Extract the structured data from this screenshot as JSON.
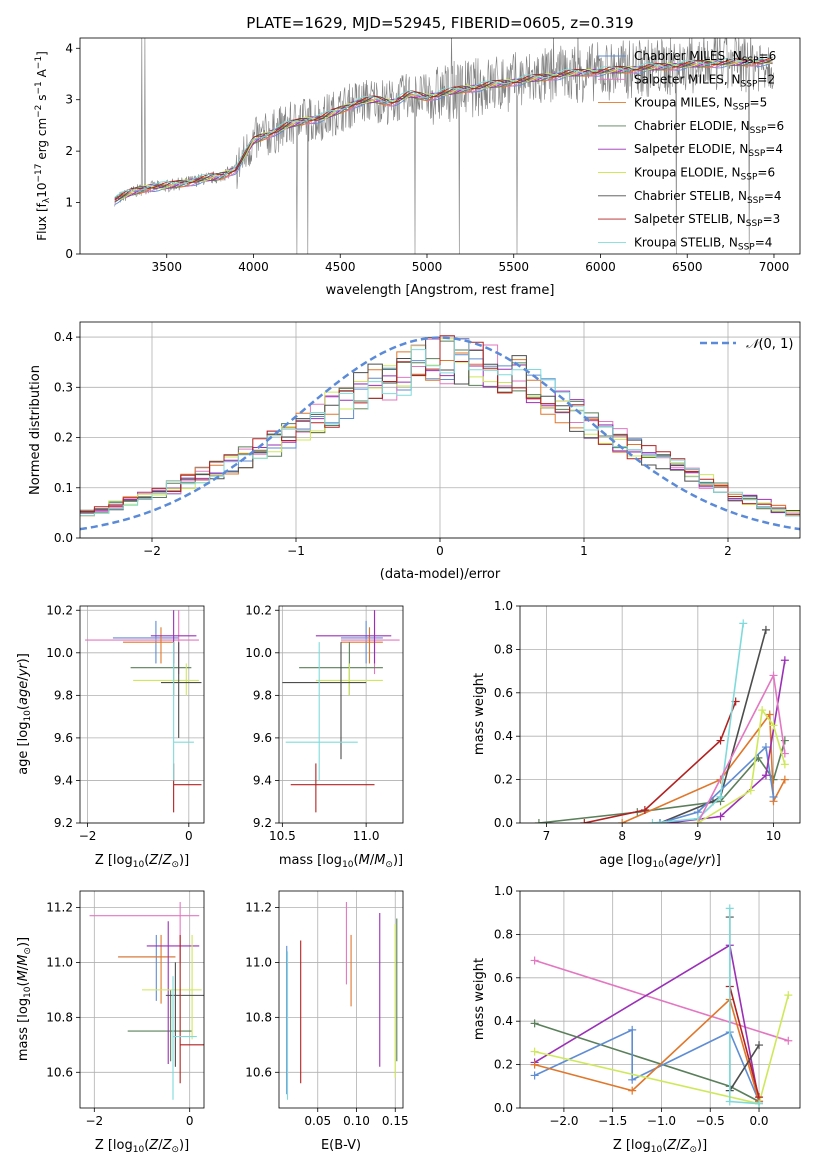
{
  "colors": {
    "chabrier_miles": "#5f8dd3",
    "salpeter_miles": "#e377c2",
    "kroupa_miles": "#e0772a",
    "chabrier_elodie": "#5a7f5a",
    "salpeter_elodie": "#9b30b6",
    "kroupa_elodie": "#cfe85a",
    "chabrier_stelib": "#4d4d4d",
    "salpeter_stelib": "#b22222",
    "kroupa_stelib": "#7fdbdb",
    "data_spectrum": "#808080",
    "normal": "#5b8bd8"
  },
  "chart_data": [
    {
      "id": "spectrum",
      "type": "line",
      "title": "PLATE=1629, MJD=52945, FIBERID=0605, z=0.319",
      "xlabel": "wavelength [Angstrom, rest frame]",
      "ylabel": "Flux [f_λ 10^-17 erg cm^-2 s^-1 A^-1]",
      "xlim": [
        3000,
        7150
      ],
      "ylim": [
        0,
        4.2
      ],
      "xticks": [
        3500,
        4000,
        4500,
        5000,
        5500,
        6000,
        6500,
        7000
      ],
      "yticks": [
        0,
        1,
        2,
        3,
        4
      ],
      "grid": false,
      "legend_position": "top-right",
      "continuum": {
        "x": [
          3200,
          3300,
          3400,
          3500,
          3600,
          3700,
          3800,
          3900,
          4000,
          4100,
          4200,
          4300,
          4400,
          4500,
          4600,
          4700,
          4800,
          4900,
          5000,
          5200,
          5400,
          5600,
          5800,
          6000,
          6200,
          6400,
          6600,
          6800,
          7000
        ],
        "y": [
          1.05,
          1.2,
          1.3,
          1.32,
          1.38,
          1.45,
          1.5,
          1.65,
          2.2,
          2.35,
          2.5,
          2.6,
          2.65,
          2.8,
          2.95,
          3.0,
          2.95,
          3.1,
          3.05,
          3.2,
          3.3,
          3.4,
          3.5,
          3.55,
          3.6,
          3.65,
          3.7,
          3.72,
          3.75
        ]
      },
      "series": [
        {
          "name": "Chabrier MILES, N_SSP=6",
          "label_main": "Chabrier MILES, N",
          "label_sub": "SSP",
          "label_end": "=6",
          "color_key": "chabrier_miles"
        },
        {
          "name": "Salpeter MILES, N_SSP=2",
          "label_main": "Salpeter MILES, N",
          "label_sub": "SSP",
          "label_end": "=2",
          "color_key": "salpeter_miles"
        },
        {
          "name": "Kroupa MILES, N_SSP=5",
          "label_main": "Kroupa MILES, N",
          "label_sub": "SSP",
          "label_end": "=5",
          "color_key": "kroupa_miles"
        },
        {
          "name": "Chabrier ELODIE, N_SSP=6",
          "label_main": "Chabrier ELODIE, N",
          "label_sub": "SSP",
          "label_end": "=6",
          "color_key": "chabrier_elodie"
        },
        {
          "name": "Salpeter ELODIE, N_SSP=4",
          "label_main": "Salpeter ELODIE, N",
          "label_sub": "SSP",
          "label_end": "=4",
          "color_key": "salpeter_elodie"
        },
        {
          "name": "Kroupa ELODIE, N_SSP=6",
          "label_main": "Kroupa ELODIE, N",
          "label_sub": "SSP",
          "label_end": "=6",
          "color_key": "kroupa_elodie"
        },
        {
          "name": "Chabrier STELIB, N_SSP=4",
          "label_main": "Chabrier STELIB, N",
          "label_sub": "SSP",
          "label_end": "=4",
          "color_key": "chabrier_stelib"
        },
        {
          "name": "Salpeter STELIB, N_SSP=3",
          "label_main": "Salpeter STELIB, N",
          "label_sub": "SSP",
          "label_end": "=3",
          "color_key": "salpeter_stelib"
        },
        {
          "name": "Kroupa STELIB, N_SSP=4",
          "label_main": "Kroupa STELIB, N",
          "label_sub": "SSP",
          "label_end": "=4",
          "color_key": "kroupa_stelib"
        }
      ]
    },
    {
      "id": "residuals",
      "type": "line",
      "xlabel": "(data-model)/error",
      "ylabel": "Normed distribution",
      "xlim": [
        -2.5,
        2.5
      ],
      "ylim": [
        0,
        0.43
      ],
      "xticks": [
        -2,
        -1,
        0,
        1,
        2
      ],
      "yticks": [
        0.0,
        0.1,
        0.2,
        0.3,
        0.4
      ],
      "grid": true,
      "legend_position": "top-right",
      "legend": "N(0,1)",
      "normal": {
        "mu": 0,
        "sigma": 1
      },
      "bin_width": 0.1,
      "histogram_shape": {
        "x": [
          -2.5,
          -2.0,
          -1.5,
          -1.0,
          -0.5,
          0.0,
          0.5,
          1.0,
          1.5,
          2.0,
          2.5
        ],
        "y": [
          0.045,
          0.085,
          0.14,
          0.21,
          0.3,
          0.36,
          0.33,
          0.235,
          0.16,
          0.09,
          0.045
        ]
      }
    },
    {
      "id": "age-vs-z",
      "type": "scatter",
      "xlabel": "Z [log10(Z/Z⊙)]",
      "ylabel": "age [log10(age/yr)]",
      "xlim": [
        -2.15,
        0.3
      ],
      "ylim": [
        9.2,
        10.22
      ],
      "xticks": [
        -2,
        0
      ],
      "yticks": [
        9.2,
        9.4,
        9.6,
        9.8,
        10.0,
        10.2
      ],
      "grid": true,
      "points": [
        {
          "color_key": "chabrier_miles",
          "x": -0.65,
          "xlo": -1.5,
          "xhi": -0.2,
          "y": 10.07,
          "ylo": 9.95,
          "yhi": 10.15
        },
        {
          "color_key": "salpeter_miles",
          "x": -0.2,
          "xlo": -2.05,
          "xhi": 0.2,
          "y": 10.06,
          "ylo": 9.9,
          "yhi": 10.2
        },
        {
          "color_key": "kroupa_miles",
          "x": -0.55,
          "xlo": -1.3,
          "xhi": -0.3,
          "y": 10.05,
          "ylo": 9.95,
          "yhi": 10.12
        },
        {
          "color_key": "chabrier_elodie",
          "x": -0.3,
          "xlo": -1.15,
          "xhi": 0.05,
          "y": 9.93,
          "ylo": 9.8,
          "yhi": 10.05
        },
        {
          "color_key": "salpeter_elodie",
          "x": -0.3,
          "xlo": -0.75,
          "xhi": 0.15,
          "y": 10.08,
          "ylo": 9.95,
          "yhi": 10.2
        },
        {
          "color_key": "kroupa_elodie",
          "x": -0.05,
          "xlo": -1.1,
          "xhi": 0.2,
          "y": 9.87,
          "ylo": 9.8,
          "yhi": 9.95
        },
        {
          "color_key": "chabrier_stelib",
          "x": -0.2,
          "xlo": -0.55,
          "xhi": 0.25,
          "y": 9.86,
          "ylo": 9.6,
          "yhi": 10.05
        },
        {
          "color_key": "salpeter_stelib",
          "x": -0.3,
          "xlo": -0.3,
          "xhi": 0.25,
          "y": 9.38,
          "ylo": 9.25,
          "yhi": 9.48
        },
        {
          "color_key": "kroupa_stelib",
          "x": -0.3,
          "xlo": -0.3,
          "xhi": 0.1,
          "y": 9.58,
          "ylo": 9.4,
          "yhi": 10.05
        }
      ]
    },
    {
      "id": "age-vs-mass",
      "type": "scatter",
      "xlabel": "mass [log10(M/M⊙)]",
      "ylabel": "",
      "xlim": [
        10.48,
        11.22
      ],
      "ylim": [
        9.2,
        10.22
      ],
      "xticks": [
        10.5,
        11.0
      ],
      "yticks": [
        9.2,
        9.4,
        9.6,
        9.8,
        10.0,
        10.2
      ],
      "grid": true,
      "points": [
        {
          "color_key": "chabrier_miles",
          "x": 11.0,
          "xlo": 10.85,
          "xhi": 11.1,
          "y": 10.07,
          "ylo": 9.95,
          "yhi": 10.15
        },
        {
          "color_key": "salpeter_miles",
          "x": 11.05,
          "xlo": 10.85,
          "xhi": 11.2,
          "y": 10.06,
          "ylo": 9.9,
          "yhi": 10.2
        },
        {
          "color_key": "kroupa_miles",
          "x": 11.02,
          "xlo": 10.85,
          "xhi": 11.1,
          "y": 10.05,
          "ylo": 9.95,
          "yhi": 10.12
        },
        {
          "color_key": "chabrier_elodie",
          "x": 10.9,
          "xlo": 10.6,
          "xhi": 11.1,
          "y": 9.93,
          "ylo": 9.8,
          "yhi": 10.05
        },
        {
          "color_key": "salpeter_elodie",
          "x": 11.05,
          "xlo": 10.7,
          "xhi": 11.15,
          "y": 10.08,
          "ylo": 9.95,
          "yhi": 10.2
        },
        {
          "color_key": "kroupa_elodie",
          "x": 10.9,
          "xlo": 10.7,
          "xhi": 11.1,
          "y": 9.87,
          "ylo": 9.8,
          "yhi": 9.95
        },
        {
          "color_key": "chabrier_stelib",
          "x": 10.85,
          "xlo": 10.5,
          "xhi": 11.0,
          "y": 9.86,
          "ylo": 9.5,
          "yhi": 10.05
        },
        {
          "color_key": "salpeter_stelib",
          "x": 10.7,
          "xlo": 10.55,
          "xhi": 11.05,
          "y": 9.38,
          "ylo": 9.25,
          "yhi": 9.48
        },
        {
          "color_key": "kroupa_stelib",
          "x": 10.72,
          "xlo": 10.52,
          "xhi": 10.95,
          "y": 9.58,
          "ylo": 9.4,
          "yhi": 10.05
        }
      ]
    },
    {
      "id": "weight-vs-age",
      "type": "line",
      "xlabel": "age [log10(age/yr)]",
      "ylabel": "mass weight",
      "xlim": [
        6.65,
        10.35
      ],
      "ylim": [
        0,
        1.0
      ],
      "xticks": [
        7,
        8,
        9,
        10
      ],
      "yticks": [
        0.0,
        0.2,
        0.4,
        0.6,
        0.8,
        1.0
      ],
      "grid": true,
      "series": [
        {
          "color_key": "chabrier_elodie",
          "x": [
            6.9,
            8.2,
            9.3,
            9.8,
            10.0,
            10.15
          ],
          "y": [
            0.0,
            0.05,
            0.1,
            0.3,
            0.2,
            0.38
          ]
        },
        {
          "color_key": "kroupa_miles",
          "x": [
            8.0,
            9.3,
            9.95,
            10.0,
            10.15
          ],
          "y": [
            0.0,
            0.2,
            0.5,
            0.1,
            0.2
          ]
        },
        {
          "color_key": "salpeter_stelib",
          "x": [
            7.5,
            8.3,
            9.3,
            9.5
          ],
          "y": [
            0.0,
            0.06,
            0.38,
            0.56
          ]
        },
        {
          "color_key": "chabrier_stelib",
          "x": [
            8.5,
            9.2,
            9.3,
            9.9
          ],
          "y": [
            0.0,
            0.1,
            0.12,
            0.89
          ]
        },
        {
          "color_key": "chabrier_miles",
          "x": [
            8.5,
            9.0,
            9.9,
            10.0
          ],
          "y": [
            0.0,
            0.05,
            0.35,
            0.12
          ]
        },
        {
          "color_key": "salpeter_elodie",
          "x": [
            8.6,
            9.3,
            9.9,
            10.15
          ],
          "y": [
            0.0,
            0.03,
            0.22,
            0.75
          ]
        },
        {
          "color_key": "kroupa_stelib",
          "x": [
            8.4,
            9.0,
            9.3,
            9.6
          ],
          "y": [
            0.0,
            0.02,
            0.12,
            0.92
          ]
        },
        {
          "color_key": "salpeter_miles",
          "x": [
            9.0,
            10.0,
            10.15
          ],
          "y": [
            0.0,
            0.68,
            0.32
          ]
        },
        {
          "color_key": "kroupa_elodie",
          "x": [
            9.0,
            9.7,
            9.85,
            10.0,
            10.15
          ],
          "y": [
            0.0,
            0.15,
            0.52,
            0.45,
            0.27
          ]
        }
      ]
    },
    {
      "id": "mass-vs-z",
      "type": "scatter",
      "xlabel": "Z [log10(Z/Z⊙)]",
      "ylabel": "mass [log10(M/M⊙)]",
      "xlim": [
        -2.3,
        0.3
      ],
      "ylim": [
        10.47,
        11.26
      ],
      "xticks": [
        -2,
        0
      ],
      "yticks": [
        10.6,
        10.8,
        11.0,
        11.2
      ],
      "grid": true,
      "points": [
        {
          "color_key": "chabrier_miles",
          "x": -0.7,
          "xlo": -1.5,
          "xhi": -0.3,
          "y": 11.02,
          "ylo": 10.86,
          "yhi": 11.1
        },
        {
          "color_key": "salpeter_miles",
          "x": -0.2,
          "xlo": -2.1,
          "xhi": 0.2,
          "y": 11.17,
          "ylo": 11.0,
          "yhi": 11.22
        },
        {
          "color_key": "kroupa_miles",
          "x": -0.6,
          "xlo": -1.5,
          "xhi": -0.3,
          "y": 11.02,
          "ylo": 10.85,
          "yhi": 11.1
        },
        {
          "color_key": "chabrier_elodie",
          "x": -0.4,
          "xlo": -1.3,
          "xhi": 0.05,
          "y": 10.75,
          "ylo": 10.64,
          "yhi": 10.9
        },
        {
          "color_key": "salpeter_elodie",
          "x": -0.45,
          "xlo": -0.9,
          "xhi": 0.2,
          "y": 11.06,
          "ylo": 10.63,
          "yhi": 11.15
        },
        {
          "color_key": "kroupa_elodie",
          "x": 0.05,
          "xlo": -1.0,
          "xhi": 0.25,
          "y": 10.9,
          "ylo": 10.72,
          "yhi": 11.1
        },
        {
          "color_key": "chabrier_stelib",
          "x": -0.3,
          "xlo": -0.5,
          "xhi": 0.3,
          "y": 10.88,
          "ylo": 10.62,
          "yhi": 11.0
        },
        {
          "color_key": "salpeter_stelib",
          "x": -0.2,
          "xlo": -0.2,
          "xhi": 0.3,
          "y": 10.7,
          "ylo": 10.56,
          "yhi": 11.1
        },
        {
          "color_key": "kroupa_stelib",
          "x": -0.35,
          "xlo": -0.35,
          "xhi": 0.15,
          "y": 10.73,
          "ylo": 10.5,
          "yhi": 10.95
        }
      ]
    },
    {
      "id": "mass-vs-ebv",
      "type": "scatter",
      "xlabel": "E(B-V)",
      "ylabel": "",
      "xlim": [
        0.0,
        0.16
      ],
      "ylim": [
        10.47,
        11.26
      ],
      "xticks": [
        0.05,
        0.1,
        0.15
      ],
      "yticks": [
        10.6,
        10.8,
        11.0,
        11.2
      ],
      "grid": true,
      "points": [
        {
          "color_key": "chabrier_miles",
          "x": 0.01,
          "ylo": 10.52,
          "yhi": 11.06
        },
        {
          "color_key": "kroupa_stelib",
          "x": 0.011,
          "ylo": 10.5,
          "yhi": 11.04
        },
        {
          "color_key": "salpeter_stelib",
          "x": 0.028,
          "ylo": 10.56,
          "yhi": 11.08
        },
        {
          "color_key": "salpeter_miles",
          "x": 0.087,
          "ylo": 10.92,
          "yhi": 11.22
        },
        {
          "color_key": "kroupa_miles",
          "x": 0.093,
          "ylo": 10.84,
          "yhi": 11.1
        },
        {
          "color_key": "salpeter_elodie",
          "x": 0.13,
          "ylo": 10.62,
          "yhi": 11.18
        },
        {
          "color_key": "chabrier_elodie",
          "x": 0.152,
          "ylo": 10.64,
          "yhi": 11.16
        },
        {
          "color_key": "kroupa_elodie",
          "x": 0.15,
          "ylo": 10.58,
          "yhi": 11.14
        }
      ]
    },
    {
      "id": "weight-vs-z",
      "type": "line",
      "xlabel": "Z [log10(Z/Z⊙)]",
      "ylabel": "mass weight",
      "xlim": [
        -2.45,
        0.42
      ],
      "ylim": [
        0,
        1.0
      ],
      "xticks": [
        -2.0,
        -1.5,
        -1.0,
        -0.5,
        0.0
      ],
      "yticks": [
        0.0,
        0.2,
        0.4,
        0.6,
        0.8,
        1.0
      ],
      "grid": true,
      "series": [
        {
          "color_key": "salpeter_miles",
          "x": [
            -2.3,
            0.3
          ],
          "y": [
            0.68,
            0.31
          ]
        },
        {
          "color_key": "salpeter_elodie",
          "x": [
            -2.3,
            -0.3,
            0.0
          ],
          "y": [
            0.21,
            0.75,
            0.03
          ]
        },
        {
          "color_key": "chabrier_elodie",
          "x": [
            -2.3,
            -0.3,
            0.0
          ],
          "y": [
            0.39,
            0.1,
            0.03
          ]
        },
        {
          "color_key": "chabrier_miles",
          "x": [
            -2.3,
            -1.3,
            -1.3,
            -0.3,
            0.0
          ],
          "y": [
            0.15,
            0.36,
            0.13,
            0.35,
            0.03
          ]
        },
        {
          "color_key": "kroupa_miles",
          "x": [
            -2.3,
            -1.3,
            -0.3,
            0.0
          ],
          "y": [
            0.2,
            0.08,
            0.5,
            0.03
          ]
        },
        {
          "color_key": "kroupa_elodie",
          "x": [
            -2.3,
            0.0,
            0.3
          ],
          "y": [
            0.26,
            0.02,
            0.52
          ]
        },
        {
          "color_key": "salpeter_stelib",
          "x": [
            -0.3,
            0.0
          ],
          "y": [
            0.56,
            0.05
          ]
        },
        {
          "color_key": "chabrier_stelib",
          "x": [
            -0.3,
            -0.3,
            0.0
          ],
          "y": [
            0.88,
            0.08,
            0.29
          ]
        },
        {
          "color_key": "kroupa_stelib",
          "x": [
            -0.3,
            -0.3,
            0.0
          ],
          "y": [
            0.92,
            0.03,
            0.02
          ]
        }
      ]
    }
  ]
}
